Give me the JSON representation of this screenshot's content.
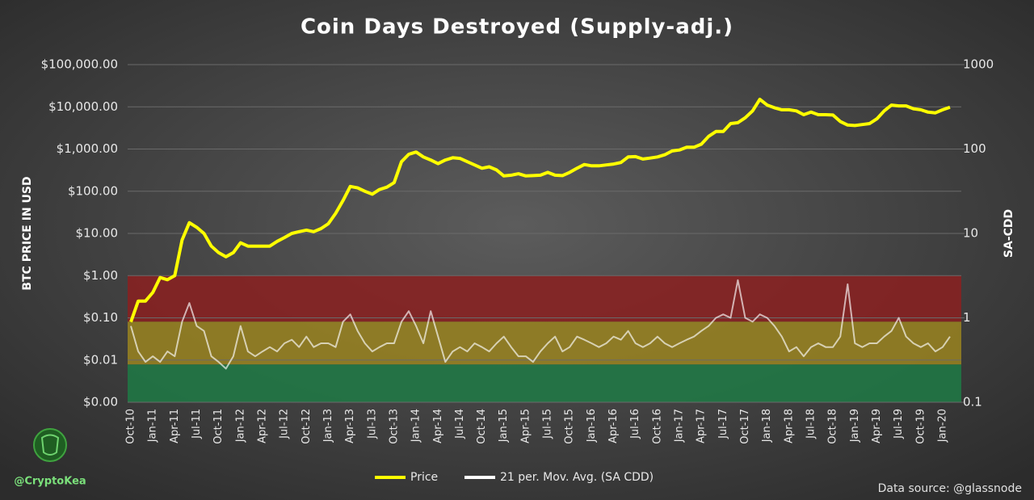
{
  "chart_data": {
    "type": "line",
    "title": "Coin Days Destroyed (Supply-adj.)",
    "y_label": "BTC PRICE IN USD",
    "y2_label": "SA-CDD",
    "credit": "@CryptoKea",
    "source": "Data source: @glassnode",
    "log_scale": true,
    "grid": true,
    "legend": "bottom",
    "categories": [
      "Oct-10",
      null,
      null,
      "Jan-11",
      null,
      null,
      "Apr-11",
      null,
      null,
      "Jul-11",
      null,
      null,
      "Oct-11",
      null,
      null,
      "Jan-12",
      null,
      null,
      "Apr-12",
      null,
      null,
      "Jul-12",
      null,
      null,
      "Oct-12",
      null,
      null,
      "Jan-13",
      null,
      null,
      "Apr-13",
      null,
      null,
      "Jul-13",
      null,
      null,
      "Oct-13",
      null,
      null,
      "Jan-14",
      null,
      null,
      "Apr-14",
      null,
      null,
      "Jul-14",
      null,
      null,
      "Oct-14",
      null,
      null,
      "Jan-15",
      null,
      null,
      "Apr-15",
      null,
      null,
      "Jul-15",
      null,
      null,
      "Oct-15",
      null,
      null,
      "Jan-16",
      null,
      null,
      "Apr-16",
      null,
      null,
      "Jul-16",
      null,
      null,
      "Oct-16",
      null,
      null,
      "Jan-17",
      null,
      null,
      "Apr-17",
      null,
      null,
      "Jul-17",
      null,
      null,
      "Oct-17",
      null,
      null,
      "Jan-18",
      null,
      null,
      "Apr-18",
      null,
      null,
      "Jul-18",
      null,
      null,
      "Oct-18",
      null,
      null,
      "Jan-19",
      null,
      null,
      "Apr-19",
      null,
      null,
      "Jul-19",
      null,
      null,
      "Oct-19",
      null,
      null,
      "Jan-20",
      null
    ],
    "series": [
      {
        "name": "Price",
        "color": "#ffff00",
        "values": [
          0.08,
          0.25,
          0.25,
          0.4,
          0.9,
          0.8,
          1.0,
          7,
          18,
          14,
          10,
          5,
          3.5,
          2.8,
          3.5,
          6,
          5,
          5,
          5,
          5,
          6.5,
          8,
          10,
          11,
          12,
          11,
          13,
          17,
          30,
          60,
          130,
          120,
          100,
          85,
          110,
          125,
          160,
          500,
          750,
          850,
          650,
          550,
          450,
          550,
          620,
          600,
          500,
          420,
          350,
          380,
          320,
          230,
          240,
          260,
          230,
          235,
          240,
          280,
          240,
          235,
          280,
          350,
          430,
          400,
          400,
          420,
          440,
          480,
          650,
          660,
          580,
          610,
          650,
          730,
          900,
          950,
          1100,
          1100,
          1300,
          2000,
          2600,
          2600,
          4000,
          4200,
          5500,
          8000,
          15000,
          11000,
          9500,
          8500,
          8500,
          8000,
          6500,
          7500,
          6500,
          6500,
          6400,
          4500,
          3700,
          3600,
          3800,
          4000,
          5200,
          8000,
          11000,
          10500,
          10500,
          9000,
          8500,
          7500,
          7200,
          8500,
          9800
        ]
      },
      {
        "name": "21 per. Mov. Avg. (SA CDD)",
        "color": "#ffffff",
        "axis": "y2",
        "values": [
          0.8,
          0.4,
          0.3,
          0.35,
          0.3,
          0.4,
          0.35,
          0.9,
          1.5,
          0.8,
          0.7,
          0.35,
          0.3,
          0.25,
          0.35,
          0.8,
          0.4,
          0.35,
          0.4,
          0.45,
          0.4,
          0.5,
          0.55,
          0.45,
          0.6,
          0.45,
          0.5,
          0.5,
          0.45,
          0.9,
          1.1,
          0.7,
          0.5,
          0.4,
          0.45,
          0.5,
          0.5,
          0.9,
          1.2,
          0.8,
          0.5,
          1.2,
          0.6,
          0.3,
          0.4,
          0.45,
          0.4,
          0.5,
          0.45,
          0.4,
          0.5,
          0.6,
          0.45,
          0.35,
          0.35,
          0.3,
          0.4,
          0.5,
          0.6,
          0.4,
          0.45,
          0.6,
          0.55,
          0.5,
          0.45,
          0.5,
          0.6,
          0.55,
          0.7,
          0.5,
          0.45,
          0.5,
          0.6,
          0.5,
          0.45,
          0.5,
          0.55,
          0.6,
          0.7,
          0.8,
          1.0,
          1.1,
          1.0,
          2.8,
          1.0,
          0.9,
          1.1,
          1.0,
          0.8,
          0.6,
          0.4,
          0.45,
          0.35,
          0.45,
          0.5,
          0.45,
          0.45,
          0.6,
          2.5,
          0.5,
          0.45,
          0.5,
          0.5,
          0.6,
          0.7,
          1.0,
          0.6,
          0.5,
          0.45,
          0.5,
          0.4,
          0.45,
          0.6
        ]
      }
    ],
    "bands": [
      {
        "axis": "y2",
        "from": 0.9,
        "to": 3.16,
        "color": "#8b2020"
      },
      {
        "axis": "y2",
        "from": 0.28,
        "to": 0.9,
        "color": "#9a8420"
      },
      {
        "axis": "y2",
        "from": 0.1,
        "to": 0.28,
        "color": "#1f7a45"
      }
    ],
    "ylim": [
      0.001,
      100000
    ],
    "yticks": [
      {
        "value": 100000,
        "label": "$100,000.00"
      },
      {
        "value": 10000,
        "label": "$10,000.00"
      },
      {
        "value": 1000,
        "label": "$1,000.00"
      },
      {
        "value": 100,
        "label": "$100.00"
      },
      {
        "value": 10,
        "label": "$10.00"
      },
      {
        "value": 1,
        "label": "$1.00"
      },
      {
        "value": 0.1,
        "label": "$0.10"
      },
      {
        "value": 0.01,
        "label": "$0.01"
      },
      {
        "value": 0.001,
        "label": "$0.00"
      }
    ],
    "y2lim": [
      0.1,
      1000
    ],
    "y2ticks": [
      1000,
      100,
      10,
      1,
      0.1
    ]
  }
}
